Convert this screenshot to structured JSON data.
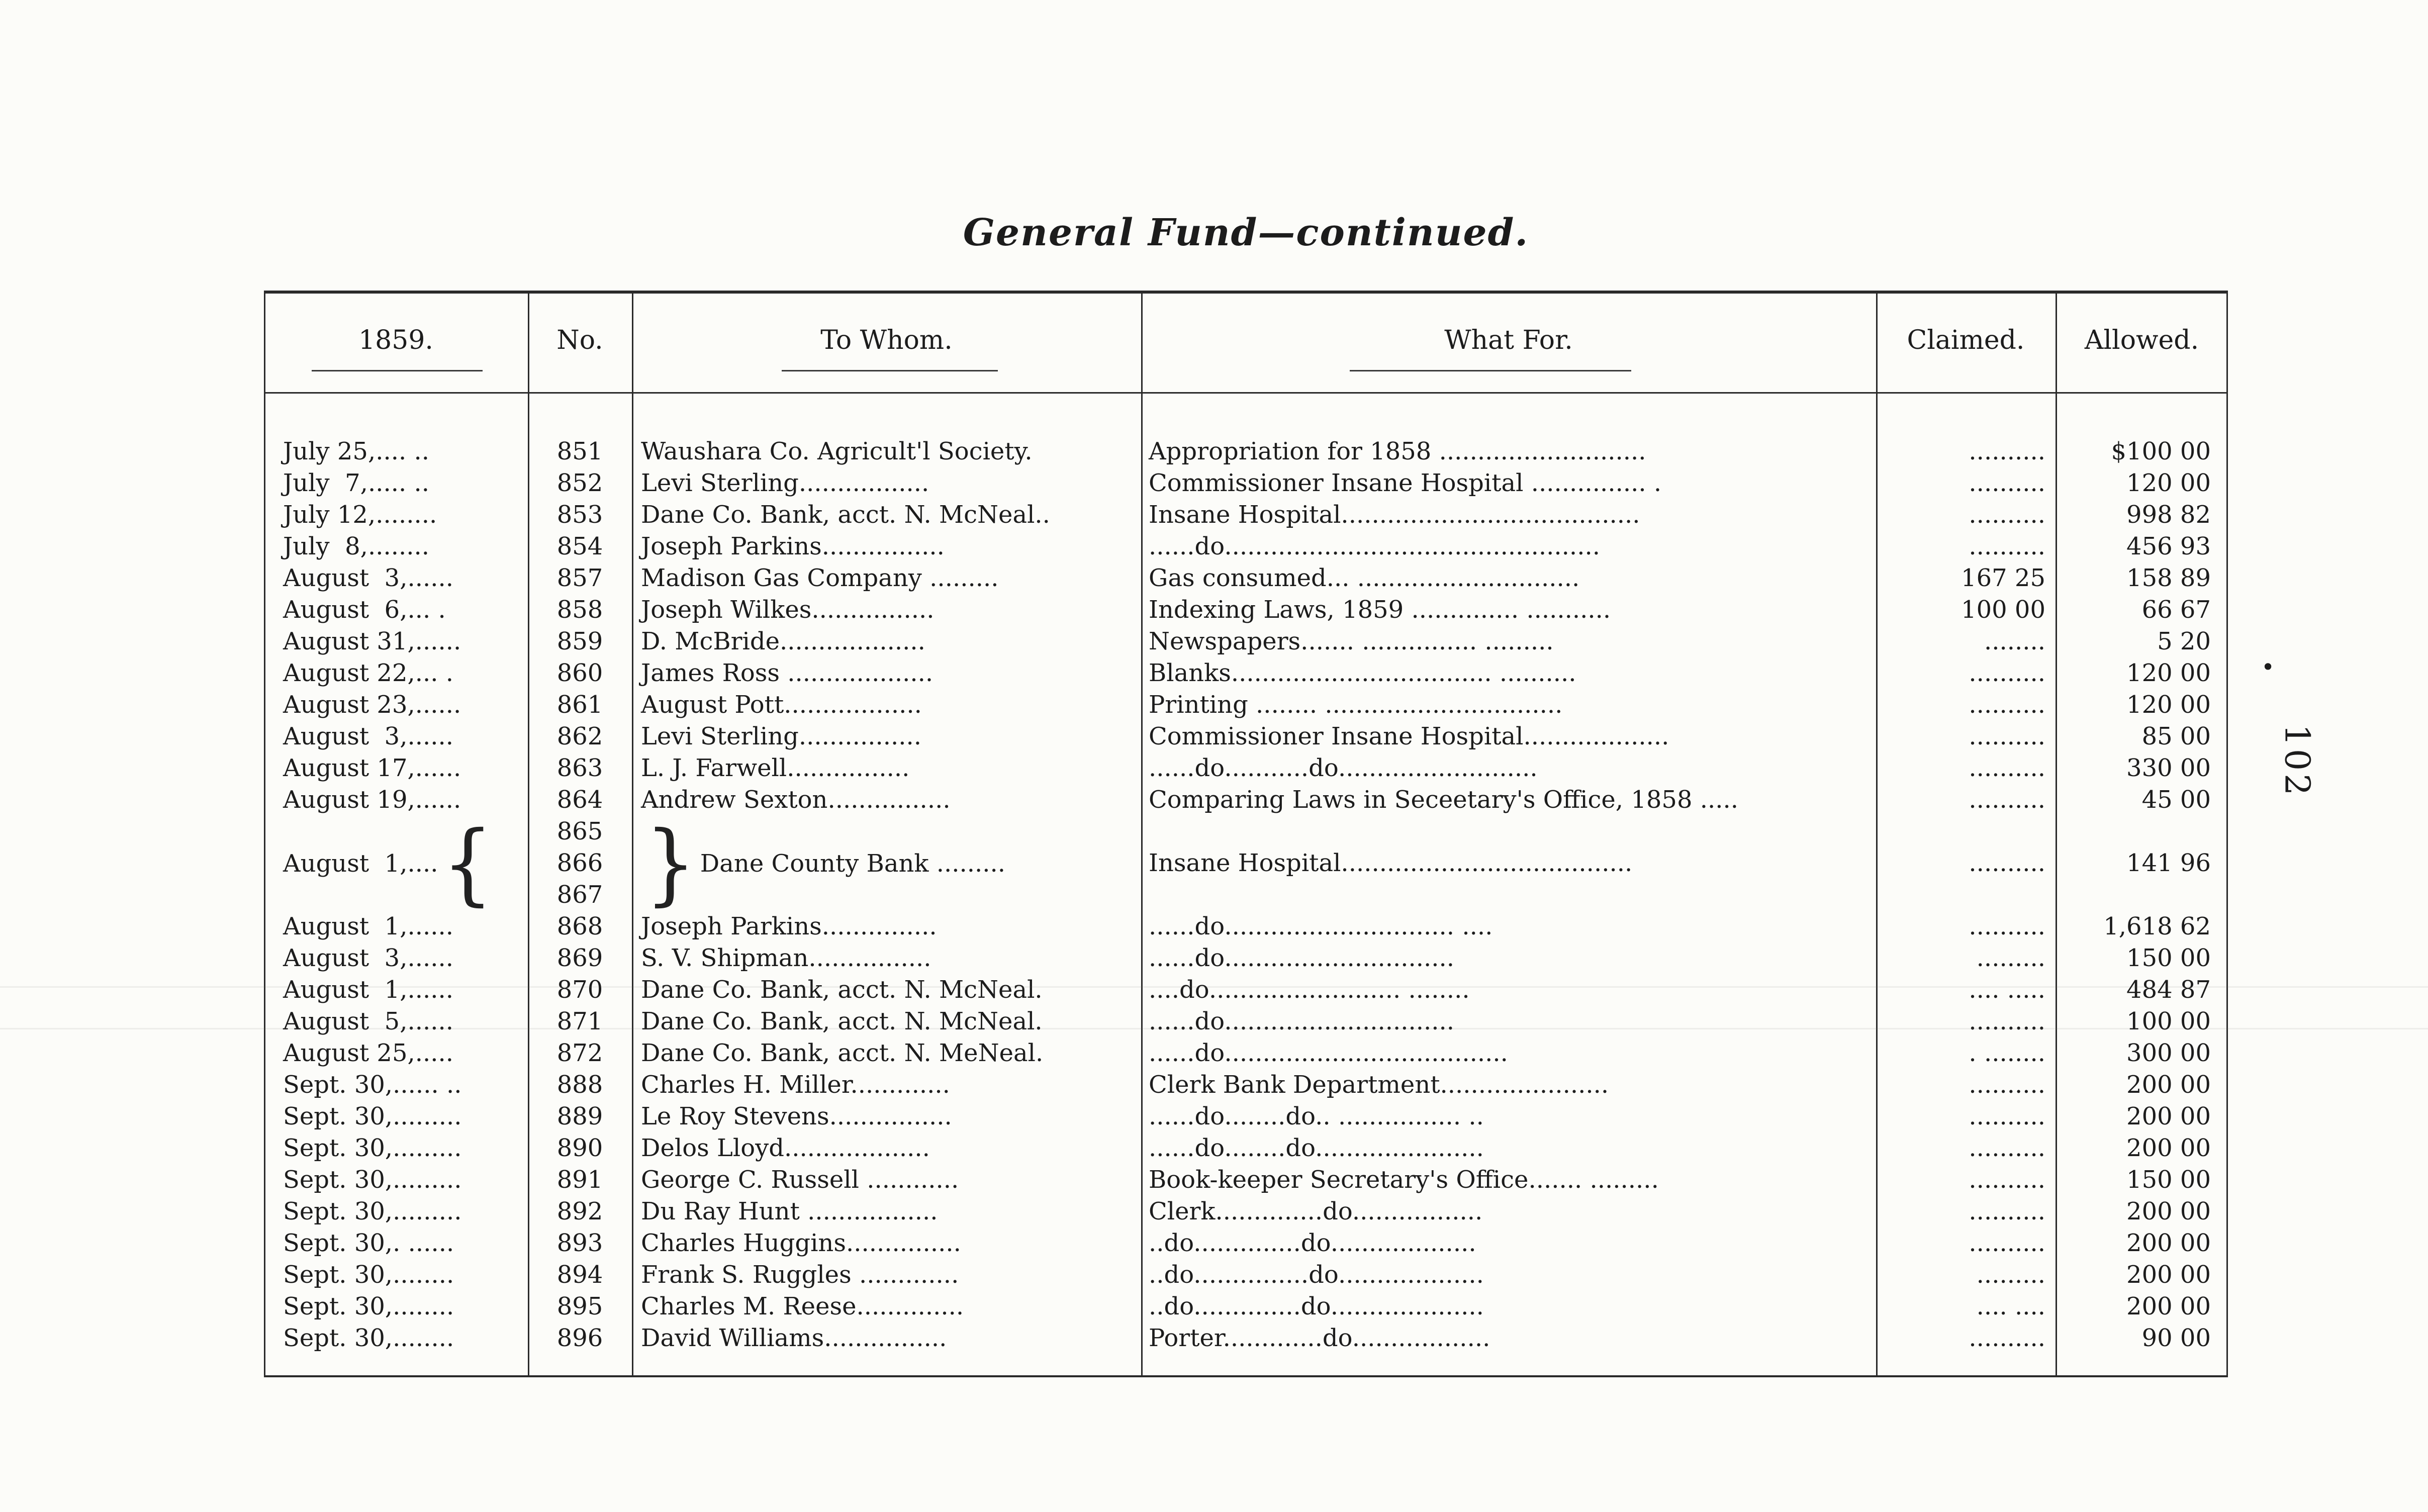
{
  "page": {
    "title": "General Fund—continued.",
    "page_number": "102",
    "margin_dot": "•"
  },
  "table": {
    "headers": {
      "date": "1859.",
      "no": "No.",
      "to_whom": "To Whom.",
      "what_for": "What For.",
      "claimed": "Claimed.",
      "allowed": "Allowed."
    },
    "rows": [
      {
        "date": "July 25,.... ..",
        "no": "851",
        "to": "Waushara Co. Agricult'l Society.",
        "for": "Appropriation for 1858 ...........................",
        "claimed": "..........",
        "allowed": "$100 00"
      },
      {
        "date": "July  7,..... ..",
        "no": "852",
        "to": "Levi Sterling.................",
        "for": "Commissioner Insane Hospital ............... .",
        "claimed": "..........",
        "allowed": "120 00"
      },
      {
        "date": "July 12,........",
        "no": "853",
        "to": "Dane Co. Bank, acct. N. McNeal..",
        "for": "Insane Hospital.......................................",
        "claimed": "..........",
        "allowed": "998 82"
      },
      {
        "date": "July  8,........",
        "no": "854",
        "to": "Joseph Parkins................",
        "for": "......do.................................................",
        "claimed": "..........",
        "allowed": "456 93"
      },
      {
        "date": "August  3,......",
        "no": "857",
        "to": "Madison Gas Company .........",
        "for": "Gas consumed... .............................",
        "claimed": "167 25",
        "allowed": "158 89"
      },
      {
        "date": "August  6,... .",
        "no": "858",
        "to": "Joseph Wilkes................",
        "for": "Indexing Laws, 1859 .............. ...........",
        "claimed": "100 00",
        "allowed": "66 67"
      },
      {
        "date": "August 31,......",
        "no": "859",
        "to": "D. McBride...................",
        "for": "Newspapers....... ............... .........",
        "claimed": "........",
        "allowed": "5 20"
      },
      {
        "date": "August 22,... .",
        "no": "860",
        "to": "James Ross ...................",
        "for": "Blanks.................................. ..........",
        "claimed": "..........",
        "allowed": "120 00"
      },
      {
        "date": "August 23,......",
        "no": "861",
        "to": "August Pott..................",
        "for": "Printing ........ ...............................",
        "claimed": "..........",
        "allowed": "120 00"
      },
      {
        "date": "August  3,......",
        "no": "862",
        "to": "Levi Sterling................",
        "for": "Commissioner Insane Hospital...................",
        "claimed": "..........",
        "allowed": "85 00"
      },
      {
        "date": "August 17,......",
        "no": "863",
        "to": "L. J. Farwell................",
        "for": "......do...........do..........................",
        "claimed": "..........",
        "allowed": "330 00"
      },
      {
        "date": "August 19,......",
        "no": "864",
        "to": "Andrew Sexton................",
        "for": "Comparing Laws in Seceetary's Office, 1858 .....",
        "claimed": "..........",
        "allowed": "45 00"
      },
      {
        "date": "August  1,....",
        "nos": [
          "865",
          "866",
          "867"
        ],
        "to": "Dane County Bank .........",
        "for": "Insane Hospital......................................",
        "claimed": "..........",
        "allowed": "141 96"
      },
      {
        "date": "August  1,......",
        "no": "868",
        "to": "Joseph Parkins...............",
        "for": "......do.............................. ....",
        "claimed": "..........",
        "allowed": "1,618 62"
      },
      {
        "date": "August  3,......",
        "no": "869",
        "to": "S. V. Shipman................",
        "for": "......do..............................",
        "claimed": ".........",
        "allowed": "150 00"
      },
      {
        "date": "August  1,......",
        "no": "870",
        "to": "Dane Co. Bank, acct. N. McNeal.",
        "for": "....do......................... ........",
        "claimed": ".... .....",
        "allowed": "484 87"
      },
      {
        "date": "August  5,......",
        "no": "871",
        "to": "Dane Co. Bank, acct. N. McNeal.",
        "for": "......do..............................",
        "claimed": "..........",
        "allowed": "100 00"
      },
      {
        "date": "August 25,.....",
        "no": "872",
        "to": "Dane Co. Bank, acct. N. MeNeal.",
        "for": "......do.....................................",
        "claimed": ". ........",
        "allowed": "300 00"
      },
      {
        "date": "Sept. 30,...... ..",
        "no": "888",
        "to": "Charles H. Miller.............",
        "for": "Clerk Bank Department......................",
        "claimed": "..........",
        "allowed": "200 00"
      },
      {
        "date": "Sept. 30,.........",
        "no": "889",
        "to": "Le Roy Stevens................",
        "for": "......do........do.. ................ ..",
        "claimed": "..........",
        "allowed": "200 00"
      },
      {
        "date": "Sept. 30,.........",
        "no": "890",
        "to": "Delos Lloyd...................",
        "for": "......do........do......................",
        "claimed": "..........",
        "allowed": "200 00"
      },
      {
        "date": "Sept. 30,.........",
        "no": "891",
        "to": "George C. Russell ............",
        "for": "Book-keeper Secretary's Office....... .........",
        "claimed": "..........",
        "allowed": "150 00"
      },
      {
        "date": "Sept. 30,.........",
        "no": "892",
        "to": "Du Ray Hunt .................",
        "for": "Clerk..............do.................",
        "claimed": "..........",
        "allowed": "200 00"
      },
      {
        "date": "Sept. 30,. ......",
        "no": "893",
        "to": "Charles Huggins...............",
        "for": "..do..............do...................",
        "claimed": "..........",
        "allowed": "200 00"
      },
      {
        "date": "Sept. 30,........",
        "no": "894",
        "to": "Frank S. Ruggles .............",
        "for": "..do...............do...................",
        "claimed": ".........",
        "allowed": "200 00"
      },
      {
        "date": "Sept. 30,........",
        "no": "895",
        "to": "Charles M. Reese..............",
        "for": "..do..............do....................",
        "claimed": ".... ....",
        "allowed": "200 00"
      },
      {
        "date": "Sept. 30,........",
        "no": "896",
        "to": "David Williams................",
        "for": "Porter.............do..................",
        "claimed": "..........",
        "allowed": "90 00"
      }
    ]
  }
}
